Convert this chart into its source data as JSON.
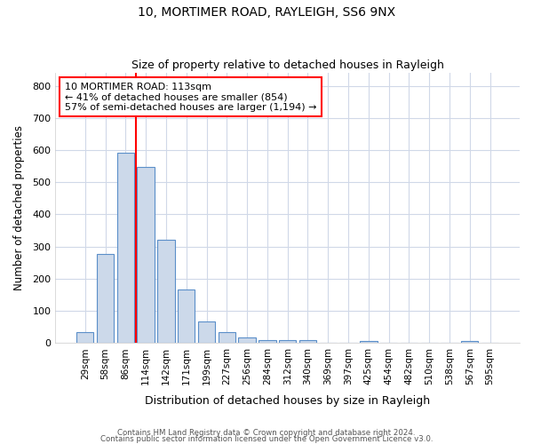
{
  "title1": "10, MORTIMER ROAD, RAYLEIGH, SS6 9NX",
  "title2": "Size of property relative to detached houses in Rayleigh",
  "xlabel": "Distribution of detached houses by size in Rayleigh",
  "ylabel": "Number of detached properties",
  "bar_color": "#ccd9ea",
  "bar_edge_color": "#5b8fc9",
  "categories": [
    "29sqm",
    "58sqm",
    "86sqm",
    "114sqm",
    "142sqm",
    "171sqm",
    "199sqm",
    "227sqm",
    "256sqm",
    "284sqm",
    "312sqm",
    "340sqm",
    "369sqm",
    "397sqm",
    "425sqm",
    "454sqm",
    "482sqm",
    "510sqm",
    "538sqm",
    "567sqm",
    "595sqm"
  ],
  "values": [
    35,
    278,
    593,
    547,
    320,
    167,
    68,
    35,
    18,
    10,
    10,
    10,
    0,
    0,
    7,
    0,
    0,
    0,
    0,
    7,
    0
  ],
  "ylim": [
    0,
    840
  ],
  "yticks": [
    0,
    100,
    200,
    300,
    400,
    500,
    600,
    700,
    800
  ],
  "annotation_text": "10 MORTIMER ROAD: 113sqm\n← 41% of detached houses are smaller (854)\n57% of semi-detached houses are larger (1,194) →",
  "background_color": "#ffffff",
  "plot_bg_color": "#ffffff",
  "grid_color": "#d0d8e8",
  "footer1": "Contains HM Land Registry data © Crown copyright and database right 2024.",
  "footer2": "Contains public sector information licensed under the Open Government Licence v3.0."
}
